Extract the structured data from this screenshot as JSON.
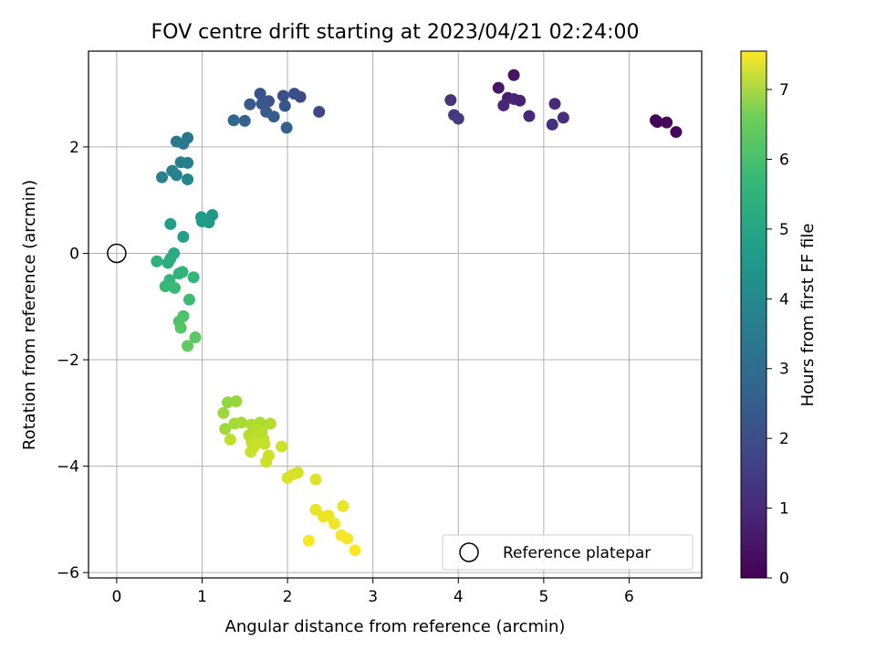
{
  "chart_data": {
    "type": "scatter",
    "title": "FOV centre drift starting at 2023/04/21 02:24:00",
    "xlabel": "Angular distance from reference (arcmin)",
    "ylabel": "Rotation from reference (arcmin)",
    "xlim": [
      -0.33,
      6.85
    ],
    "ylim": [
      -6.1,
      3.8
    ],
    "xticks": [
      0,
      1,
      2,
      3,
      4,
      5,
      6
    ],
    "yticks": [
      -6,
      -4,
      -2,
      0,
      2
    ],
    "grid": true,
    "legend": {
      "position": "bottom-right",
      "entries": [
        "Reference platepar"
      ]
    },
    "reference_point": {
      "x": 0,
      "y": 0,
      "marker": "hollow-circle"
    },
    "colorbar": {
      "label": "Hours from first FF file",
      "min": 0,
      "max": 7.55,
      "ticks": [
        0,
        1,
        2,
        3,
        4,
        5,
        6,
        7
      ],
      "colormap": "viridis"
    },
    "points": [
      [
        6.31,
        2.5,
        0.05
      ],
      [
        6.33,
        2.47,
        0.1
      ],
      [
        6.44,
        2.46,
        0.15
      ],
      [
        6.55,
        2.28,
        0.2
      ],
      [
        4.65,
        3.35,
        0.4
      ],
      [
        4.47,
        3.11,
        0.5
      ],
      [
        4.58,
        2.92,
        0.6
      ],
      [
        4.72,
        2.87,
        0.7
      ],
      [
        4.65,
        2.9,
        0.75
      ],
      [
        4.53,
        2.78,
        0.8
      ],
      [
        4.83,
        2.58,
        0.85
      ],
      [
        5.13,
        2.81,
        0.9
      ],
      [
        5.23,
        2.55,
        0.95
      ],
      [
        5.1,
        2.42,
        1.0
      ],
      [
        3.91,
        2.88,
        1.1
      ],
      [
        3.95,
        2.6,
        1.2
      ],
      [
        4.0,
        2.53,
        1.3
      ],
      [
        2.37,
        2.66,
        1.6
      ],
      [
        2.15,
        2.94,
        1.7
      ],
      [
        2.08,
        3.0,
        1.8
      ],
      [
        1.95,
        2.96,
        1.85
      ],
      [
        1.78,
        2.86,
        1.9
      ],
      [
        1.68,
        3.0,
        1.95
      ],
      [
        1.97,
        2.77,
        2.0
      ],
      [
        1.7,
        2.81,
        2.05
      ],
      [
        1.56,
        2.8,
        2.1
      ],
      [
        1.75,
        2.66,
        2.15
      ],
      [
        1.84,
        2.57,
        2.2
      ],
      [
        1.99,
        2.36,
        2.3
      ],
      [
        1.5,
        2.49,
        2.4
      ],
      [
        1.37,
        2.5,
        2.5
      ],
      [
        0.83,
        2.17,
        3.0
      ],
      [
        0.78,
        2.06,
        3.05
      ],
      [
        0.7,
        2.1,
        3.1
      ],
      [
        0.75,
        1.71,
        3.2
      ],
      [
        0.83,
        1.7,
        3.25
      ],
      [
        0.65,
        1.55,
        3.3
      ],
      [
        0.7,
        1.47,
        3.35
      ],
      [
        0.53,
        1.43,
        3.4
      ],
      [
        0.83,
        1.39,
        3.45
      ],
      [
        1.12,
        0.72,
        4.0
      ],
      [
        0.99,
        0.68,
        4.05
      ],
      [
        1.08,
        0.58,
        4.1
      ],
      [
        1.0,
        0.6,
        4.15
      ],
      [
        0.63,
        0.55,
        4.2
      ],
      [
        0.78,
        0.31,
        4.3
      ],
      [
        0.67,
        0.0,
        4.6
      ],
      [
        0.63,
        -0.1,
        4.65
      ],
      [
        0.6,
        -0.18,
        4.7
      ],
      [
        0.47,
        -0.15,
        4.8
      ],
      [
        0.73,
        -0.38,
        4.85
      ],
      [
        0.77,
        -0.35,
        4.9
      ],
      [
        0.62,
        -0.5,
        4.95
      ],
      [
        0.9,
        -0.45,
        5.0
      ],
      [
        0.57,
        -0.62,
        5.05
      ],
      [
        0.68,
        -0.65,
        5.1
      ],
      [
        0.85,
        -0.87,
        5.15
      ],
      [
        0.78,
        -1.18,
        5.4
      ],
      [
        0.73,
        -1.28,
        5.45
      ],
      [
        0.75,
        -1.4,
        5.5
      ],
      [
        0.92,
        -1.58,
        5.6
      ],
      [
        0.83,
        -1.74,
        5.7
      ],
      [
        1.3,
        -2.8,
        6.3
      ],
      [
        1.4,
        -2.78,
        6.35
      ],
      [
        1.25,
        -3.0,
        6.4
      ],
      [
        1.27,
        -3.3,
        6.45
      ],
      [
        1.38,
        -3.2,
        6.5
      ],
      [
        1.46,
        -3.18,
        6.55
      ],
      [
        1.58,
        -3.22,
        6.6
      ],
      [
        1.68,
        -3.18,
        6.62
      ],
      [
        1.8,
        -3.2,
        6.65
      ],
      [
        1.62,
        -3.3,
        6.7
      ],
      [
        1.7,
        -3.35,
        6.72
      ],
      [
        1.55,
        -3.42,
        6.75
      ],
      [
        1.63,
        -3.48,
        6.78
      ],
      [
        1.72,
        -3.5,
        6.8
      ],
      [
        1.33,
        -3.5,
        6.82
      ],
      [
        1.58,
        -3.55,
        6.85
      ],
      [
        1.66,
        -3.55,
        6.87
      ],
      [
        1.73,
        -3.58,
        6.9
      ],
      [
        1.6,
        -3.65,
        6.92
      ],
      [
        1.57,
        -3.73,
        6.95
      ],
      [
        1.78,
        -3.8,
        6.97
      ],
      [
        1.75,
        -3.92,
        7.0
      ],
      [
        1.93,
        -3.63,
        7.02
      ],
      [
        2.12,
        -4.12,
        7.1
      ],
      [
        2.07,
        -4.15,
        7.12
      ],
      [
        2.0,
        -4.22,
        7.15
      ],
      [
        2.33,
        -4.25,
        7.2
      ],
      [
        2.33,
        -4.82,
        7.3
      ],
      [
        2.65,
        -4.75,
        7.32
      ],
      [
        2.48,
        -4.93,
        7.35
      ],
      [
        2.42,
        -4.95,
        7.38
      ],
      [
        2.55,
        -5.08,
        7.4
      ],
      [
        2.63,
        -5.3,
        7.45
      ],
      [
        2.7,
        -5.36,
        7.48
      ],
      [
        2.25,
        -5.4,
        7.5
      ],
      [
        2.79,
        -5.58,
        7.55
      ]
    ]
  }
}
